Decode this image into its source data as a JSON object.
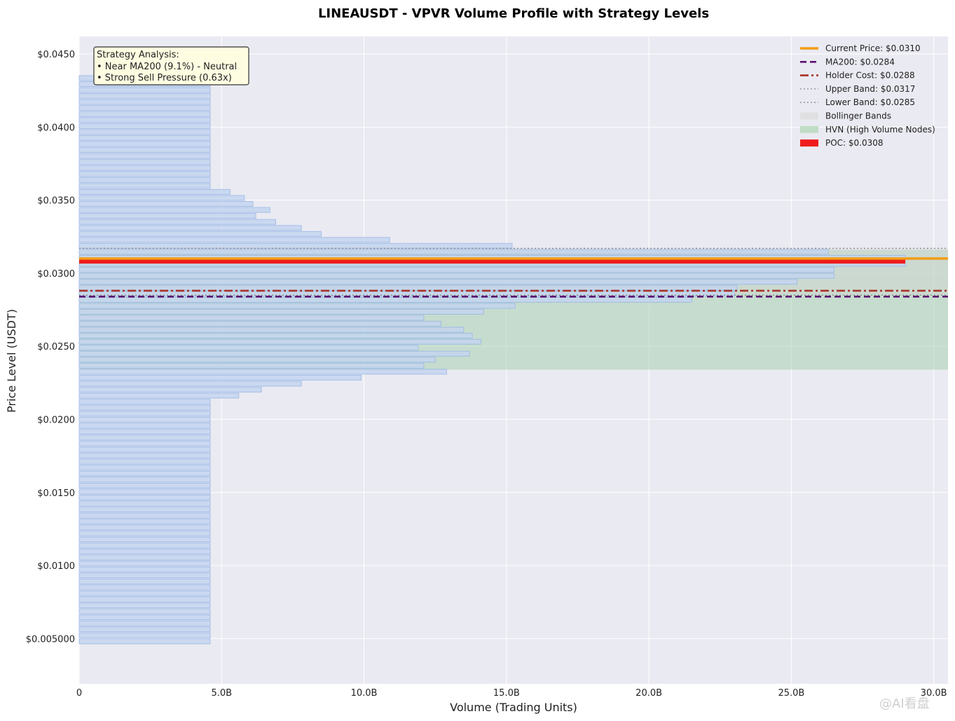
{
  "chart_data": {
    "type": "bar",
    "orientation": "horizontal",
    "title": "LINEAUSDT - VPVR Volume Profile with Strategy Levels",
    "xlabel": "Volume (Trading Units)",
    "ylabel": "Price Level (USDT)",
    "xlim": [
      0,
      30.5
    ],
    "ylim": [
      0.0019,
      0.0462
    ],
    "x_ticks": [
      0,
      5,
      10,
      15,
      20,
      25,
      30
    ],
    "x_tick_labels": [
      "0",
      "5.0B",
      "10.0B",
      "15.0B",
      "20.0B",
      "25.0B",
      "30.0B"
    ],
    "y_ticks": [
      0.005,
      0.01,
      0.015,
      0.02,
      0.025,
      0.03,
      0.035,
      0.04,
      0.045
    ],
    "y_tick_labels": [
      "$0.005000",
      "$0.0100",
      "$0.0150",
      "$0.0200",
      "$0.0250",
      "$0.0300",
      "$0.0350",
      "$0.0400",
      "$0.0450"
    ],
    "grid": true,
    "legend_position": "top-right",
    "bar_color": "#c5d6f0",
    "bar_edge": "#9bb8e6",
    "hvn_color": "#a8cfb0",
    "bars": [
      {
        "price": 0.00481,
        "volume": 4.6
      },
      {
        "price": 0.00522,
        "volume": 4.6
      },
      {
        "price": 0.00563,
        "volume": 4.6
      },
      {
        "price": 0.00604,
        "volume": 4.6
      },
      {
        "price": 0.00645,
        "volume": 4.6
      },
      {
        "price": 0.00686,
        "volume": 4.6
      },
      {
        "price": 0.00727,
        "volume": 4.6
      },
      {
        "price": 0.00768,
        "volume": 4.6
      },
      {
        "price": 0.00809,
        "volume": 4.6
      },
      {
        "price": 0.0085,
        "volume": 4.6
      },
      {
        "price": 0.00891,
        "volume": 4.6
      },
      {
        "price": 0.00932,
        "volume": 4.6
      },
      {
        "price": 0.00973,
        "volume": 4.6
      },
      {
        "price": 0.01014,
        "volume": 4.6
      },
      {
        "price": 0.01055,
        "volume": 4.6
      },
      {
        "price": 0.01096,
        "volume": 4.6
      },
      {
        "price": 0.01137,
        "volume": 4.6
      },
      {
        "price": 0.01178,
        "volume": 4.6
      },
      {
        "price": 0.01219,
        "volume": 4.6
      },
      {
        "price": 0.0126,
        "volume": 4.6
      },
      {
        "price": 0.01301,
        "volume": 4.6
      },
      {
        "price": 0.01342,
        "volume": 4.6
      },
      {
        "price": 0.01383,
        "volume": 4.6
      },
      {
        "price": 0.01424,
        "volume": 4.6
      },
      {
        "price": 0.01465,
        "volume": 4.6
      },
      {
        "price": 0.01506,
        "volume": 4.6
      },
      {
        "price": 0.01547,
        "volume": 4.6
      },
      {
        "price": 0.01588,
        "volume": 4.6
      },
      {
        "price": 0.01629,
        "volume": 4.6
      },
      {
        "price": 0.0167,
        "volume": 4.6
      },
      {
        "price": 0.01711,
        "volume": 4.6
      },
      {
        "price": 0.01752,
        "volume": 4.6
      },
      {
        "price": 0.01793,
        "volume": 4.6
      },
      {
        "price": 0.01834,
        "volume": 4.6
      },
      {
        "price": 0.01875,
        "volume": 4.6
      },
      {
        "price": 0.01916,
        "volume": 4.6
      },
      {
        "price": 0.01957,
        "volume": 4.6
      },
      {
        "price": 0.01998,
        "volume": 4.6
      },
      {
        "price": 0.02039,
        "volume": 4.6
      },
      {
        "price": 0.0208,
        "volume": 4.6
      },
      {
        "price": 0.02121,
        "volume": 4.6
      },
      {
        "price": 0.02162,
        "volume": 5.6
      },
      {
        "price": 0.02203,
        "volume": 6.4
      },
      {
        "price": 0.02244,
        "volume": 7.8
      },
      {
        "price": 0.02285,
        "volume": 9.9
      },
      {
        "price": 0.02326,
        "volume": 12.9
      },
      {
        "price": 0.02367,
        "volume": 12.1
      },
      {
        "price": 0.02408,
        "volume": 12.5
      },
      {
        "price": 0.02449,
        "volume": 13.7
      },
      {
        "price": 0.0249,
        "volume": 11.9
      },
      {
        "price": 0.02531,
        "volume": 14.1
      },
      {
        "price": 0.02572,
        "volume": 13.8
      },
      {
        "price": 0.02613,
        "volume": 13.5
      },
      {
        "price": 0.02654,
        "volume": 12.7
      },
      {
        "price": 0.02695,
        "volume": 12.1
      },
      {
        "price": 0.02736,
        "volume": 14.2
      },
      {
        "price": 0.02777,
        "volume": 15.3
      },
      {
        "price": 0.02818,
        "volume": 21.5
      },
      {
        "price": 0.02859,
        "volume": 23.0
      },
      {
        "price": 0.029,
        "volume": 23.1
      },
      {
        "price": 0.02941,
        "volume": 25.2
      },
      {
        "price": 0.02982,
        "volume": 26.5
      },
      {
        "price": 0.03023,
        "volume": 26.5
      },
      {
        "price": 0.03064,
        "volume": 29.0
      },
      {
        "price": 0.03105,
        "volume": 29.0
      },
      {
        "price": 0.03146,
        "volume": 26.3
      },
      {
        "price": 0.03187,
        "volume": 15.2
      },
      {
        "price": 0.03228,
        "volume": 10.9
      },
      {
        "price": 0.03269,
        "volume": 8.5
      },
      {
        "price": 0.0331,
        "volume": 7.8
      },
      {
        "price": 0.03351,
        "volume": 6.9
      },
      {
        "price": 0.03392,
        "volume": 6.2
      },
      {
        "price": 0.03433,
        "volume": 6.7
      },
      {
        "price": 0.03474,
        "volume": 6.1
      },
      {
        "price": 0.03515,
        "volume": 5.8
      },
      {
        "price": 0.03556,
        "volume": 5.3
      },
      {
        "price": 0.03597,
        "volume": 4.6
      },
      {
        "price": 0.03638,
        "volume": 4.6
      },
      {
        "price": 0.03679,
        "volume": 4.6
      },
      {
        "price": 0.0372,
        "volume": 4.6
      },
      {
        "price": 0.03761,
        "volume": 4.6
      },
      {
        "price": 0.03802,
        "volume": 4.6
      },
      {
        "price": 0.03843,
        "volume": 4.6
      },
      {
        "price": 0.03884,
        "volume": 4.6
      },
      {
        "price": 0.03925,
        "volume": 4.6
      },
      {
        "price": 0.03966,
        "volume": 4.6
      },
      {
        "price": 0.04007,
        "volume": 4.6
      },
      {
        "price": 0.04048,
        "volume": 4.6
      },
      {
        "price": 0.04089,
        "volume": 4.6
      },
      {
        "price": 0.0413,
        "volume": 4.6
      },
      {
        "price": 0.04171,
        "volume": 4.6
      },
      {
        "price": 0.04212,
        "volume": 4.6
      },
      {
        "price": 0.04253,
        "volume": 4.6
      },
      {
        "price": 0.04294,
        "volume": 4.6
      },
      {
        "price": 0.04335,
        "volume": 4.6
      }
    ],
    "hvn_range": [
      0.0234,
      0.0316
    ],
    "bollinger_range": [
      0.0285,
      0.0317
    ],
    "lines": [
      {
        "label": "Current Price: $0.0310",
        "price": 0.031,
        "style": "solid",
        "color": "#f39c12"
      },
      {
        "label": "MA200: $0.0284",
        "price": 0.0284,
        "style": "dashed",
        "color": "#5b0f70"
      },
      {
        "label": "Holder Cost: $0.0288",
        "price": 0.0288,
        "style": "dashdot",
        "color": "#a93226"
      },
      {
        "label": "Upper Band: $0.0317",
        "price": 0.0317,
        "style": "dotted",
        "color": "#8a8a8a"
      },
      {
        "label": "Lower Band: $0.0285",
        "price": 0.0285,
        "style": "dotted",
        "color": "#8a8a8a"
      }
    ],
    "poc": {
      "label": "POC: $0.0308",
      "price": 0.0308,
      "volume": 29.0,
      "color": "#ee1c1c"
    },
    "legend": [
      {
        "label": "Current Price: $0.0310",
        "kind": "line-solid",
        "color": "#f39c12"
      },
      {
        "label": "MA200: $0.0284",
        "kind": "line-dashed",
        "color": "#5b0f70"
      },
      {
        "label": "Holder Cost: $0.0288",
        "kind": "line-dashdot",
        "color": "#a93226"
      },
      {
        "label": "Upper Band: $0.0317",
        "kind": "line-dotted",
        "color": "#8a8a8a"
      },
      {
        "label": "Lower Band: $0.0285",
        "kind": "line-dotted",
        "color": "#8a8a8a"
      },
      {
        "label": "Bollinger Bands",
        "kind": "patch",
        "color": "#dcdcdc"
      },
      {
        "label": "HVN (High Volume Nodes)",
        "kind": "patch",
        "color": "#b5d9b9"
      },
      {
        "label": "POC: $0.0308",
        "kind": "patch",
        "color": "#ee1c1c"
      }
    ],
    "annotation": {
      "lines": [
        "Strategy Analysis:",
        "• Near MA200 (9.1%) - Neutral",
        "• Strong Sell Pressure (0.63x)"
      ]
    }
  },
  "watermark": "@AI看盘"
}
